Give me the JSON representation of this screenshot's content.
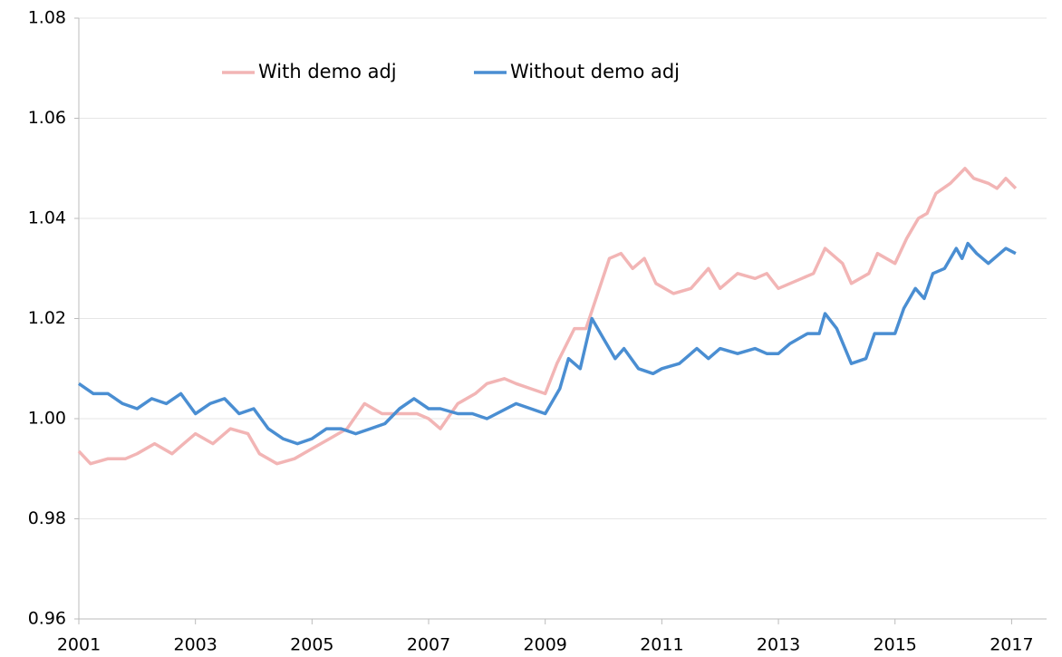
{
  "chart_data": {
    "type": "line",
    "xlim": [
      2001,
      2017.6
    ],
    "xticks": [
      2001,
      2003,
      2005,
      2007,
      2009,
      2011,
      2013,
      2015,
      2017
    ],
    "ylim": [
      0.96,
      1.08
    ],
    "yticks": [
      0.96,
      0.98,
      {
        "value": 1,
        "label": "1.00"
      },
      1.02,
      1.04,
      1.06,
      1.08
    ],
    "grid": true,
    "legend": "top",
    "series": [
      {
        "name": "With demo adj",
        "color": "#f2b5b5",
        "x": [
          2001.0,
          2001.2,
          2001.5,
          2001.8,
          2002.0,
          2002.3,
          2002.6,
          2002.8,
          2003.0,
          2003.3,
          2003.6,
          2003.9,
          2004.1,
          2004.4,
          2004.7,
          2005.0,
          2005.3,
          2005.6,
          2005.9,
          2006.2,
          2006.5,
          2006.8,
          2007.0,
          2007.2,
          2007.5,
          2007.8,
          2008.0,
          2008.3,
          2008.5,
          2008.75,
          2009.0,
          2009.2,
          2009.5,
          2009.7,
          2009.9,
          2010.1,
          2010.3,
          2010.5,
          2010.7,
          2010.9,
          2011.2,
          2011.5,
          2011.8,
          2012.0,
          2012.3,
          2012.6,
          2012.8,
          2013.0,
          2013.4,
          2013.6,
          2013.8,
          2014.1,
          2014.25,
          2014.55,
          2014.7,
          2015.0,
          2015.2,
          2015.4,
          2015.55,
          2015.7,
          2015.95,
          2016.2,
          2016.35,
          2016.6,
          2016.75,
          2016.9,
          2017.07
        ],
        "values": [
          0.9935,
          0.991,
          0.992,
          0.992,
          0.993,
          0.995,
          0.993,
          0.995,
          0.997,
          0.995,
          0.998,
          0.997,
          0.993,
          0.991,
          0.992,
          0.994,
          0.996,
          0.998,
          1.003,
          1.001,
          1.001,
          1.001,
          1.0,
          0.998,
          1.003,
          1.005,
          1.007,
          1.008,
          1.007,
          1.006,
          1.005,
          1.011,
          1.018,
          1.018,
          1.025,
          1.032,
          1.033,
          1.03,
          1.032,
          1.027,
          1.025,
          1.026,
          1.03,
          1.026,
          1.029,
          1.028,
          1.029,
          1.026,
          1.028,
          1.029,
          1.034,
          1.031,
          1.027,
          1.029,
          1.033,
          1.031,
          1.036,
          1.04,
          1.041,
          1.045,
          1.047,
          1.05,
          1.048,
          1.047,
          1.046,
          1.048,
          1.046
        ]
      },
      {
        "name": "Without demo adj",
        "color": "#4a8ed2",
        "x": [
          2001.0,
          2001.25,
          2001.5,
          2001.75,
          2002.0,
          2002.25,
          2002.5,
          2002.75,
          2003.0,
          2003.25,
          2003.5,
          2003.75,
          2004.0,
          2004.25,
          2004.5,
          2004.75,
          2005.0,
          2005.25,
          2005.5,
          2005.75,
          2006.0,
          2006.25,
          2006.5,
          2006.75,
          2007.0,
          2007.2,
          2007.5,
          2007.75,
          2008.0,
          2008.5,
          2009.0,
          2009.25,
          2009.4,
          2009.6,
          2009.8,
          2010.0,
          2010.2,
          2010.35,
          2010.6,
          2010.85,
          2011.0,
          2011.3,
          2011.6,
          2011.8,
          2012.0,
          2012.3,
          2012.6,
          2012.8,
          2013.0,
          2013.2,
          2013.5,
          2013.7,
          2013.8,
          2014.0,
          2014.25,
          2014.5,
          2014.65,
          2015.0,
          2015.15,
          2015.35,
          2015.5,
          2015.65,
          2015.85,
          2016.05,
          2016.15,
          2016.25,
          2016.4,
          2016.6,
          2016.8,
          2016.9,
          2017.07
        ],
        "values": [
          1.007,
          1.005,
          1.005,
          1.003,
          1.002,
          1.004,
          1.003,
          1.005,
          1.001,
          1.003,
          1.004,
          1.001,
          1.002,
          0.998,
          0.996,
          0.995,
          0.996,
          0.998,
          0.998,
          0.997,
          0.998,
          0.999,
          1.002,
          1.004,
          1.002,
          1.002,
          1.001,
          1.001,
          1.0,
          1.003,
          1.001,
          1.006,
          1.012,
          1.01,
          1.02,
          1.016,
          1.012,
          1.014,
          1.01,
          1.009,
          1.01,
          1.011,
          1.014,
          1.012,
          1.014,
          1.013,
          1.014,
          1.013,
          1.013,
          1.015,
          1.017,
          1.017,
          1.021,
          1.018,
          1.011,
          1.012,
          1.017,
          1.017,
          1.022,
          1.026,
          1.024,
          1.029,
          1.03,
          1.034,
          1.032,
          1.035,
          1.033,
          1.031,
          1.033,
          1.034,
          1.033
        ]
      }
    ]
  }
}
